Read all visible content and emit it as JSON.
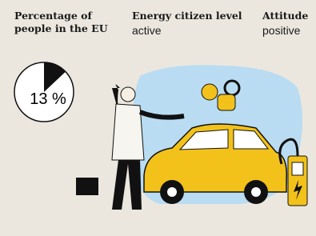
{
  "columns": [
    {
      "heading": "Percentage of people in the EU",
      "pie": {
        "type": "pie",
        "values": [
          13
        ],
        "value_labels": [
          "13 %"
        ],
        "color": "#111111"
      }
    },
    {
      "heading": "Energy citizen level",
      "value": "active"
    },
    {
      "heading": "Attitude",
      "value": "positive"
    }
  ]
}
